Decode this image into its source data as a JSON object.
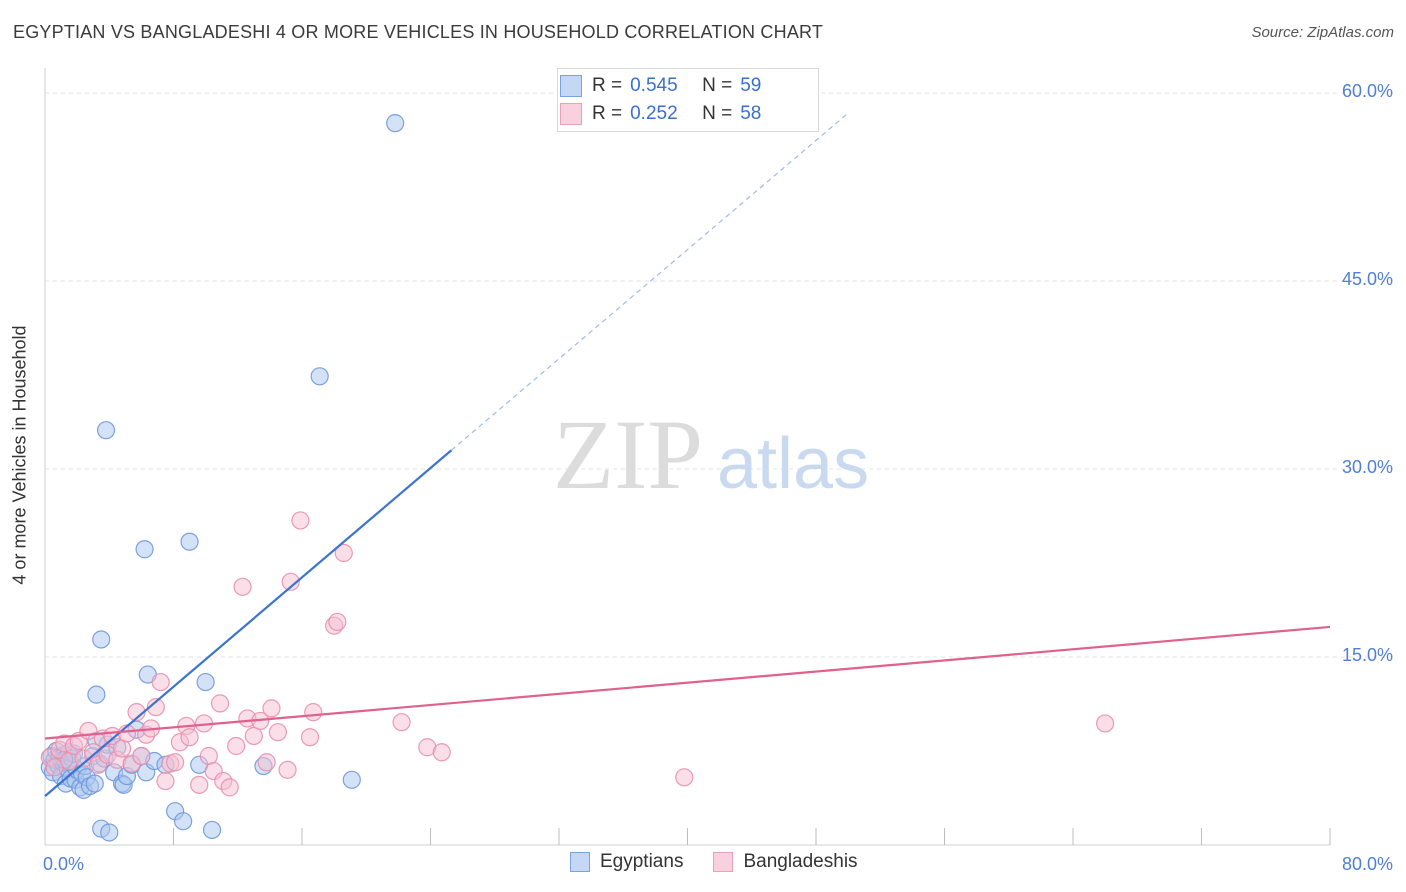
{
  "header": {
    "title": "EGYPTIAN VS BANGLADESHI 4 OR MORE VEHICLES IN HOUSEHOLD CORRELATION CHART",
    "source": "Source: ZipAtlas.com"
  },
  "watermark": {
    "zip": "ZIP",
    "atlas": "atlas"
  },
  "legend": {
    "egyptians": {
      "r_label": "R =",
      "r_value": "0.545",
      "n_label": "N =",
      "n_value": "59"
    },
    "bangladeshis": {
      "r_label": "R =",
      "r_value": "0.252",
      "n_label": "N =",
      "n_value": "58"
    }
  },
  "bottom_legend": {
    "egyptians": "Egyptians",
    "bangladeshis": "Bangladeshis"
  },
  "colors": {
    "egyptians_fill": "#a9c6f0",
    "egyptians_stroke": "#6f98dc",
    "egyptians_line": "#3a74d0",
    "bangladeshis_fill": "#f6bfd1",
    "bangladeshis_stroke": "#e98fae",
    "bangladeshis_line": "#e0608e",
    "tick_text": "#4f7fd6",
    "grid": "#e3e3e3"
  },
  "chart_data": {
    "type": "scatter",
    "title": "EGYPTIAN VS BANGLADESHI 4 OR MORE VEHICLES IN HOUSEHOLD CORRELATION CHART",
    "xlabel": "",
    "ylabel": "4 or more Vehicles in Household",
    "xlim": [
      0,
      80
    ],
    "ylim": [
      0,
      62
    ],
    "x_tick_labels": [
      "0.0%",
      "80.0%"
    ],
    "y_ticks": [
      15,
      30,
      45,
      60
    ],
    "y_tick_labels": [
      "15.0%",
      "30.0%",
      "45.0%",
      "60.0%"
    ],
    "legend_position": "top-center",
    "series": [
      {
        "name": "Egyptians",
        "r": 0.545,
        "n": 59,
        "trend": {
          "x0": 0,
          "y0": 3.9,
          "x1": 25.3,
          "y1": 31.5,
          "dashed_to_x": 50,
          "dashed_to_y": 58.4
        },
        "points": [
          [
            0.3,
            6.2
          ],
          [
            0.4,
            7.1
          ],
          [
            0.5,
            5.8
          ],
          [
            0.6,
            6.8
          ],
          [
            0.7,
            7.5
          ],
          [
            0.8,
            6.4
          ],
          [
            0.9,
            7.0
          ],
          [
            1.0,
            5.5
          ],
          [
            1.1,
            6.6
          ],
          [
            1.2,
            7.2
          ],
          [
            1.3,
            4.9
          ],
          [
            1.4,
            6.1
          ],
          [
            1.5,
            7.4
          ],
          [
            1.6,
            5.3
          ],
          [
            1.7,
            6.9
          ],
          [
            1.8,
            7.3
          ],
          [
            1.9,
            5.2
          ],
          [
            2.0,
            6.0
          ],
          [
            2.2,
            4.6
          ],
          [
            2.3,
            5.7
          ],
          [
            2.4,
            4.4
          ],
          [
            2.5,
            6.3
          ],
          [
            2.6,
            5.4
          ],
          [
            2.8,
            4.7
          ],
          [
            3.0,
            7.1
          ],
          [
            3.1,
            4.9
          ],
          [
            3.2,
            8.3
          ],
          [
            3.4,
            6.5
          ],
          [
            3.5,
            1.3
          ],
          [
            3.7,
            6.9
          ],
          [
            3.9,
            8.0
          ],
          [
            4.0,
            1.0
          ],
          [
            4.3,
            5.8
          ],
          [
            4.5,
            7.8
          ],
          [
            4.8,
            4.9
          ],
          [
            4.9,
            4.8
          ],
          [
            5.1,
            5.5
          ],
          [
            5.4,
            6.4
          ],
          [
            5.7,
            9.2
          ],
          [
            6.0,
            7.1
          ],
          [
            6.3,
            5.8
          ],
          [
            6.8,
            6.7
          ],
          [
            7.5,
            6.4
          ],
          [
            8.1,
            2.7
          ],
          [
            8.6,
            1.9
          ],
          [
            9.6,
            6.4
          ],
          [
            10.4,
            1.2
          ],
          [
            3.2,
            12.0
          ],
          [
            3.5,
            16.4
          ],
          [
            3.8,
            33.1
          ],
          [
            6.2,
            23.6
          ],
          [
            6.4,
            13.6
          ],
          [
            9.0,
            24.2
          ],
          [
            10.0,
            13.0
          ],
          [
            13.6,
            6.3
          ],
          [
            17.1,
            37.4
          ],
          [
            19.1,
            5.2
          ],
          [
            21.8,
            57.6
          ],
          [
            1.2,
            6.8
          ]
        ]
      },
      {
        "name": "Bangladeshis",
        "r": 0.252,
        "n": 58,
        "trend": {
          "x0": 0,
          "y0": 8.5,
          "x1": 80,
          "y1": 17.4
        },
        "points": [
          [
            0.3,
            7.0
          ],
          [
            0.6,
            6.2
          ],
          [
            0.9,
            7.6
          ],
          [
            1.2,
            8.1
          ],
          [
            1.5,
            6.7
          ],
          [
            1.8,
            7.9
          ],
          [
            2.1,
            8.3
          ],
          [
            2.4,
            6.9
          ],
          [
            2.7,
            9.1
          ],
          [
            3.0,
            7.4
          ],
          [
            3.3,
            6.4
          ],
          [
            3.6,
            8.5
          ],
          [
            3.9,
            7.2
          ],
          [
            4.2,
            8.7
          ],
          [
            4.5,
            6.8
          ],
          [
            4.8,
            7.7
          ],
          [
            5.1,
            8.9
          ],
          [
            5.4,
            6.5
          ],
          [
            5.7,
            10.6
          ],
          [
            6.0,
            7.1
          ],
          [
            6.3,
            8.8
          ],
          [
            6.6,
            9.3
          ],
          [
            6.9,
            11.0
          ],
          [
            7.2,
            13.0
          ],
          [
            7.5,
            5.1
          ],
          [
            7.8,
            6.5
          ],
          [
            8.1,
            6.6
          ],
          [
            8.4,
            8.2
          ],
          [
            8.8,
            9.5
          ],
          [
            9.0,
            8.6
          ],
          [
            9.6,
            4.8
          ],
          [
            9.9,
            9.7
          ],
          [
            10.2,
            7.1
          ],
          [
            10.5,
            5.9
          ],
          [
            10.9,
            11.3
          ],
          [
            11.1,
            5.1
          ],
          [
            11.5,
            4.6
          ],
          [
            11.9,
            7.9
          ],
          [
            12.3,
            20.6
          ],
          [
            12.6,
            10.1
          ],
          [
            13.0,
            8.7
          ],
          [
            13.4,
            9.9
          ],
          [
            13.8,
            6.6
          ],
          [
            14.1,
            10.9
          ],
          [
            14.5,
            9.0
          ],
          [
            15.1,
            6.0
          ],
          [
            15.3,
            21.0
          ],
          [
            15.9,
            25.9
          ],
          [
            16.5,
            8.6
          ],
          [
            16.7,
            10.6
          ],
          [
            18.0,
            17.5
          ],
          [
            18.2,
            17.8
          ],
          [
            18.6,
            23.3
          ],
          [
            22.2,
            9.8
          ],
          [
            23.8,
            7.8
          ],
          [
            24.7,
            7.4
          ],
          [
            39.8,
            5.4
          ],
          [
            66.0,
            9.7
          ]
        ]
      }
    ]
  }
}
